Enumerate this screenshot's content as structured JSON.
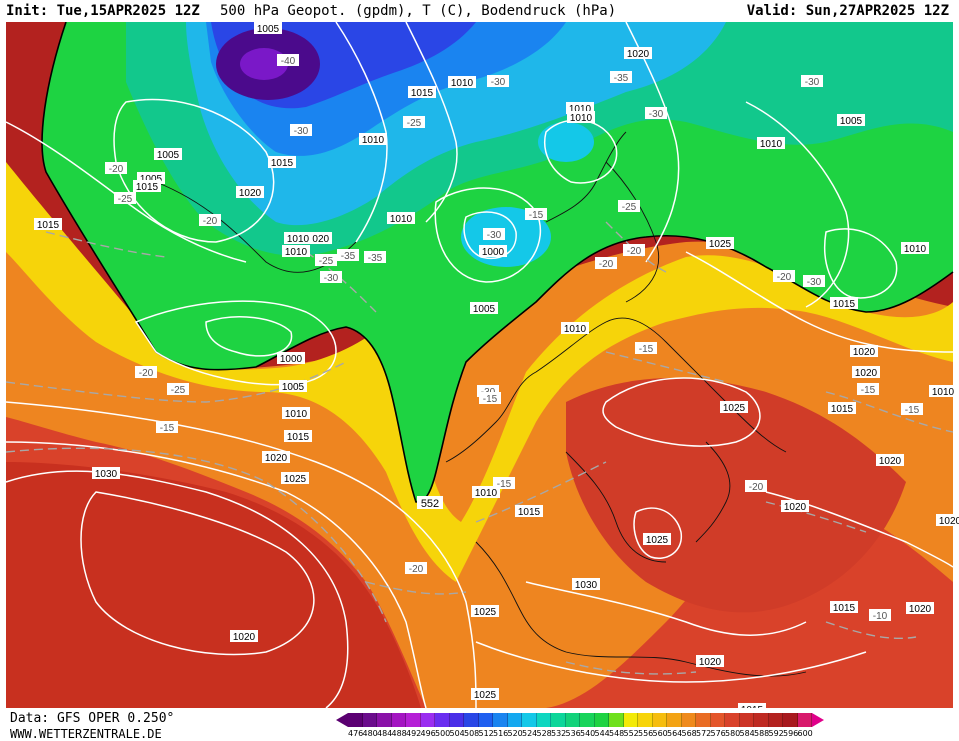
{
  "header": {
    "init": "Init: Tue,15APR2025 12Z",
    "title": "500 hPa Geopot. (gpdm), T (C), Bodendruck (hPa)",
    "valid": "Valid: Sun,27APR2025 12Z"
  },
  "footer": {
    "data_source": "Data: GFS OPER 0.250°",
    "website": "WWW.WETTERZENTRALE.DE"
  },
  "colors": {
    "ocean_deep_purple": "#4b0a8c",
    "blue": "#1f3fe0",
    "cyan": "#1fb7ea",
    "teal_green": "#12c88c",
    "green": "#1ed34a",
    "yellow": "#f3ea07",
    "orange": "#f2a314",
    "red_orange": "#e4562a",
    "dark_red": "#b3221f",
    "isobar": "#ffffff",
    "isotherm": "#a8a8a8"
  },
  "legend": {
    "ticks": [
      "476",
      "480",
      "484",
      "488",
      "492",
      "496",
      "500",
      "504",
      "508",
      "512",
      "516",
      "520",
      "524",
      "528",
      "532",
      "536",
      "540",
      "544",
      "548",
      "552",
      "556",
      "560",
      "564",
      "568",
      "572",
      "576",
      "580",
      "584",
      "588",
      "592",
      "596",
      "600"
    ],
    "colors": [
      "#5c0073",
      "#6b0c8c",
      "#8a11a8",
      "#a414c2",
      "#b51fd6",
      "#9a2df0",
      "#6a2df0",
      "#4a2fe8",
      "#2a46e6",
      "#1f5ff0",
      "#1a84f0",
      "#14a8f0",
      "#14c8e8",
      "#0ed6c0",
      "#0cd69a",
      "#12d27a",
      "#18d45a",
      "#1ed342",
      "#6ee01c",
      "#f3ea07",
      "#f7d40a",
      "#f6bd0e",
      "#f3a314",
      "#ef8a1c",
      "#e96c24",
      "#e4562a",
      "#d9422a",
      "#cc3426",
      "#bf2a22",
      "#b3221f",
      "#a81a1e",
      "#d81a6c"
    ]
  },
  "map": {
    "boundary_label": "552",
    "isobar_labels": [
      "1005",
      "1020",
      "1010",
      "1015",
      "1010",
      "1010",
      "1005",
      "1010",
      "1020",
      "1010",
      "1015",
      "1020",
      "1010",
      "1010",
      "1000",
      "1005",
      "1010",
      "1025",
      "1015",
      "1020",
      "1010",
      "1025",
      "1030",
      "1015",
      "1025",
      "1020",
      "1010",
      "1010",
      "1000",
      "1005",
      "1005",
      "1010",
      "1015",
      "1020",
      "1025",
      "1030",
      "1025",
      "1020",
      "1015",
      "1020",
      "1020",
      "1015",
      "1020",
      "1025",
      "1020",
      "1010",
      "1020",
      "1015",
      "1005",
      "1015",
      "1015"
    ],
    "isotherm_labels": [
      "-40",
      "-35",
      "-30",
      "-30",
      "-25",
      "-30",
      "-30",
      "-25",
      "-20",
      "-20",
      "-25",
      "-15",
      "-30",
      "-35",
      "-35",
      "-30",
      "-25",
      "-20",
      "-20",
      "-15",
      "-20",
      "-30",
      "-20",
      "-25",
      "-20",
      "-15",
      "-15",
      "-20",
      "-15",
      "-10",
      "-15",
      "-15",
      "-30"
    ]
  }
}
